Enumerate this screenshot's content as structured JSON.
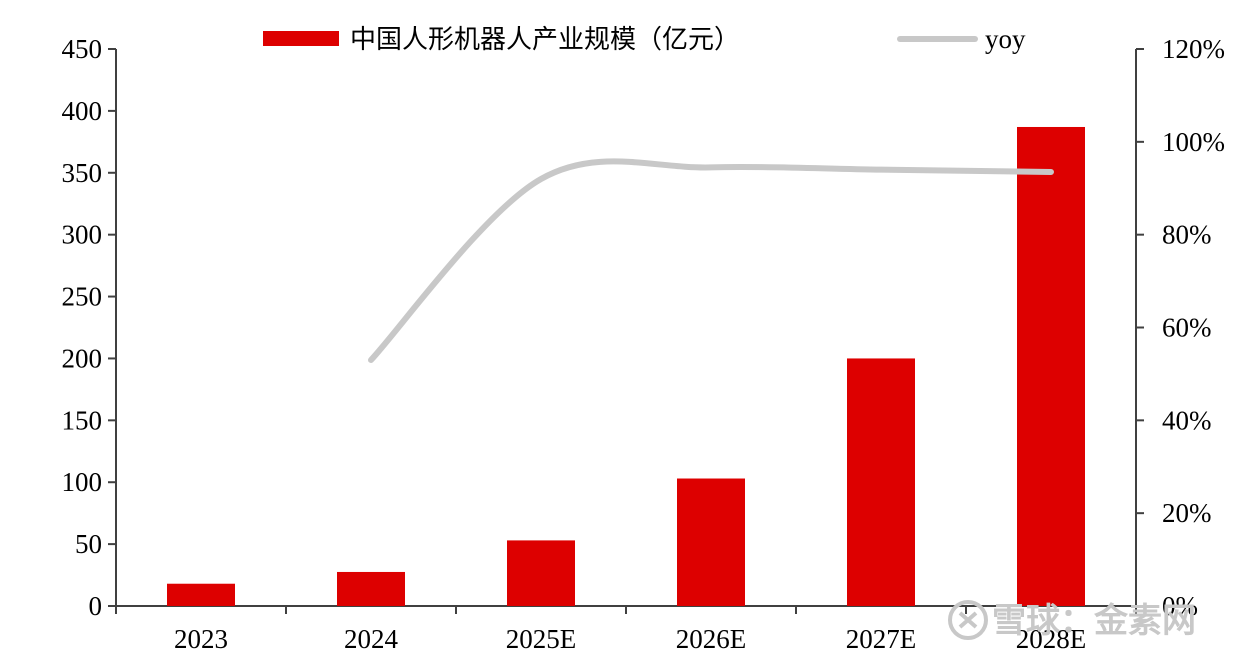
{
  "chart_data": {
    "type": "bar",
    "categories": [
      "2023",
      "2024",
      "2025E",
      "2026E",
      "2027E",
      "2028E"
    ],
    "series": [
      {
        "name": "中国人形机器人产业规模（亿元）",
        "type": "bar",
        "axis": "left",
        "color": "#dd0000",
        "values": [
          18,
          27.5,
          53,
          103,
          200,
          387
        ]
      },
      {
        "name": "yoy",
        "type": "line",
        "axis": "right",
        "color": "#c8c8c8",
        "values": [
          null,
          53,
          92,
          94.5,
          94,
          93.5
        ]
      }
    ],
    "title": "",
    "xlabel": "",
    "ylabel": "",
    "ylim": [
      0,
      450
    ],
    "y2lim": [
      0,
      120
    ],
    "y_ticks": [
      "0",
      "50",
      "100",
      "150",
      "200",
      "250",
      "300",
      "350",
      "400",
      "450"
    ],
    "y2_ticks": [
      "0%",
      "20%",
      "40%",
      "60%",
      "80%",
      "100%",
      "120%"
    ],
    "grid": false,
    "legend_position": "top-center"
  },
  "watermark": {
    "text": "雪球：金素网"
  }
}
